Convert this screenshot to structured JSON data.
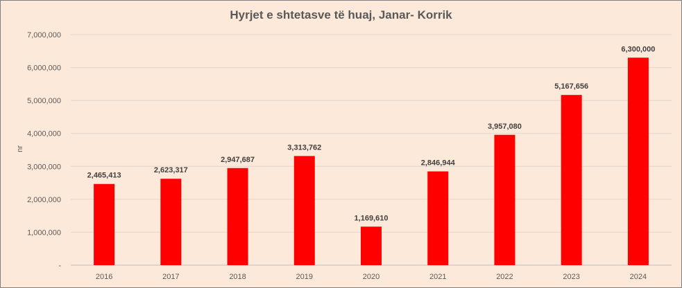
{
  "chart_data": {
    "type": "bar",
    "title": "Hyrjet e shtetasve të huaj, Janar- Korrik",
    "xlabel": "",
    "ylabel": "nr",
    "categories": [
      "2016",
      "2017",
      "2018",
      "2019",
      "2020",
      "2021",
      "2022",
      "2023",
      "2024"
    ],
    "values": [
      2465413,
      2623317,
      2947687,
      3313762,
      1169610,
      2846944,
      3957080,
      5167656,
      6300000
    ],
    "data_labels": [
      "2,465,413",
      "2,623,317",
      "2,947,687",
      "3,313,762",
      "1,169,610",
      "2,846,944",
      "3,957,080",
      "5,167,656",
      "6,300,000"
    ],
    "ylim": [
      0,
      7000000
    ],
    "yticks": [
      0,
      1000000,
      2000000,
      3000000,
      4000000,
      5000000,
      6000000,
      7000000
    ],
    "ytick_labels": [
      "-",
      "1,000,000",
      "2,000,000",
      "3,000,000",
      "4,000,000",
      "5,000,000",
      "6,000,000",
      "7,000,000"
    ],
    "bar_color": "#ff0000",
    "background_color": "#fde9d9",
    "grid": true,
    "legend": false
  }
}
